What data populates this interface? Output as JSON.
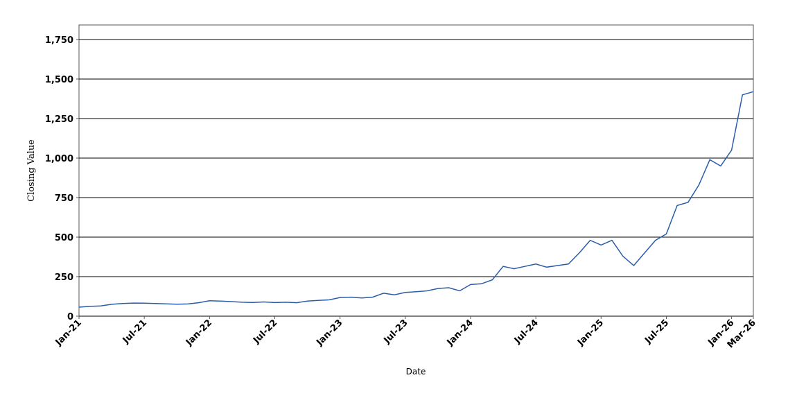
{
  "chart_data": {
    "type": "line",
    "x_label": "Date",
    "y_label": "Closing Value",
    "x": [
      "2021-01",
      "2021-02",
      "2021-03",
      "2021-04",
      "2021-05",
      "2021-06",
      "2021-07",
      "2021-08",
      "2021-09",
      "2021-10",
      "2021-11",
      "2021-12",
      "2022-01",
      "2022-02",
      "2022-03",
      "2022-04",
      "2022-05",
      "2022-06",
      "2022-07",
      "2022-08",
      "2022-09",
      "2022-10",
      "2022-11",
      "2022-12",
      "2023-01",
      "2023-02",
      "2023-03",
      "2023-04",
      "2023-05",
      "2023-06",
      "2023-07",
      "2023-08",
      "2023-09",
      "2023-10",
      "2023-11",
      "2023-12",
      "2024-01",
      "2024-02",
      "2024-03",
      "2024-04",
      "2024-05",
      "2024-06",
      "2024-07",
      "2024-08",
      "2024-09",
      "2024-10",
      "2024-11",
      "2024-12",
      "2025-01",
      "2025-02",
      "2025-03",
      "2025-04",
      "2025-05",
      "2025-06",
      "2025-07",
      "2025-08",
      "2025-09",
      "2025-10",
      "2025-11",
      "2025-12",
      "2026-01",
      "2026-02",
      "2026-03"
    ],
    "values": [
      57,
      62,
      65,
      75,
      80,
      83,
      82,
      80,
      78,
      76,
      77,
      85,
      98,
      95,
      92,
      88,
      87,
      90,
      86,
      88,
      85,
      95,
      100,
      103,
      118,
      120,
      115,
      120,
      145,
      135,
      150,
      155,
      160,
      175,
      180,
      160,
      200,
      205,
      230,
      315,
      300,
      315,
      330,
      310,
      320,
      330,
      400,
      480,
      450,
      480,
      380,
      320,
      400,
      480,
      520,
      700,
      720,
      830,
      990,
      950,
      1050,
      1400,
      1420
    ],
    "color": "#2a5ca8",
    "xlim": [
      "2021-01",
      "2026-03"
    ],
    "xticks": [
      {
        "value": "2021-01",
        "label": "Jan-21"
      },
      {
        "value": "2021-07",
        "label": "Jul-21"
      },
      {
        "value": "2022-01",
        "label": "Jan-22"
      },
      {
        "value": "2022-07",
        "label": "Jul-22"
      },
      {
        "value": "2023-01",
        "label": "Jan-23"
      },
      {
        "value": "2023-07",
        "label": "Jul-23"
      },
      {
        "value": "2024-01",
        "label": "Jan-24"
      },
      {
        "value": "2024-07",
        "label": "Jul-24"
      },
      {
        "value": "2025-01",
        "label": "Jan-25"
      },
      {
        "value": "2025-07",
        "label": "Jul-25"
      },
      {
        "value": "2026-01",
        "label": "Jan-26"
      },
      {
        "value": "2026-03",
        "label": "Mar-26"
      }
    ],
    "ylim": [
      0,
      1842
    ],
    "yticks": [
      0,
      250,
      500,
      750,
      {
        "value": 1000,
        "label": "1,000"
      },
      {
        "value": 1250,
        "label": "1,250"
      },
      {
        "value": 1500,
        "label": "1,500"
      },
      {
        "value": 1750,
        "label": "1,750"
      }
    ],
    "grid": true
  }
}
